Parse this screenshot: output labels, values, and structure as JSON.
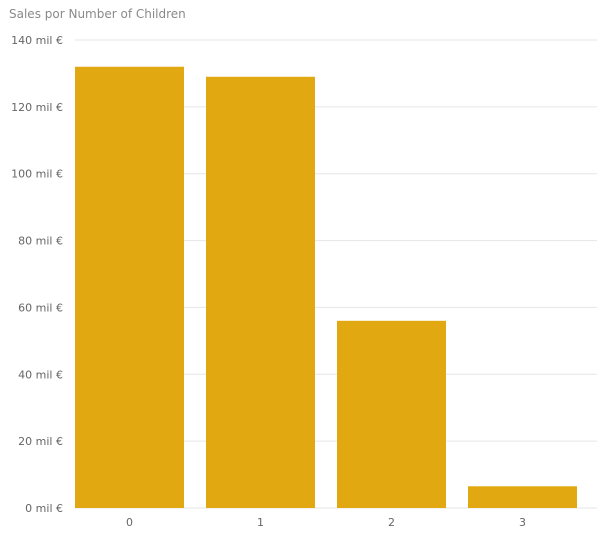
{
  "chart_data": {
    "type": "bar",
    "title": "Sales por Number of Children",
    "xlabel": "",
    "ylabel": "",
    "categories": [
      "0",
      "1",
      "2",
      "3"
    ],
    "values": [
      132,
      129,
      56,
      6.5
    ],
    "ylim": [
      0,
      140
    ],
    "yticks": [
      0,
      20,
      40,
      60,
      80,
      100,
      120,
      140
    ],
    "ytick_labels": [
      "0 mil €",
      "20 mil €",
      "40 mil €",
      "60 mil €",
      "80 mil €",
      "100 mil €",
      "120 mil €",
      "140 mil €"
    ],
    "grid": true,
    "legend": "none",
    "bar_color": "#E1A812",
    "grid_color": "#e6e6e6",
    "text_color": "#666666"
  }
}
